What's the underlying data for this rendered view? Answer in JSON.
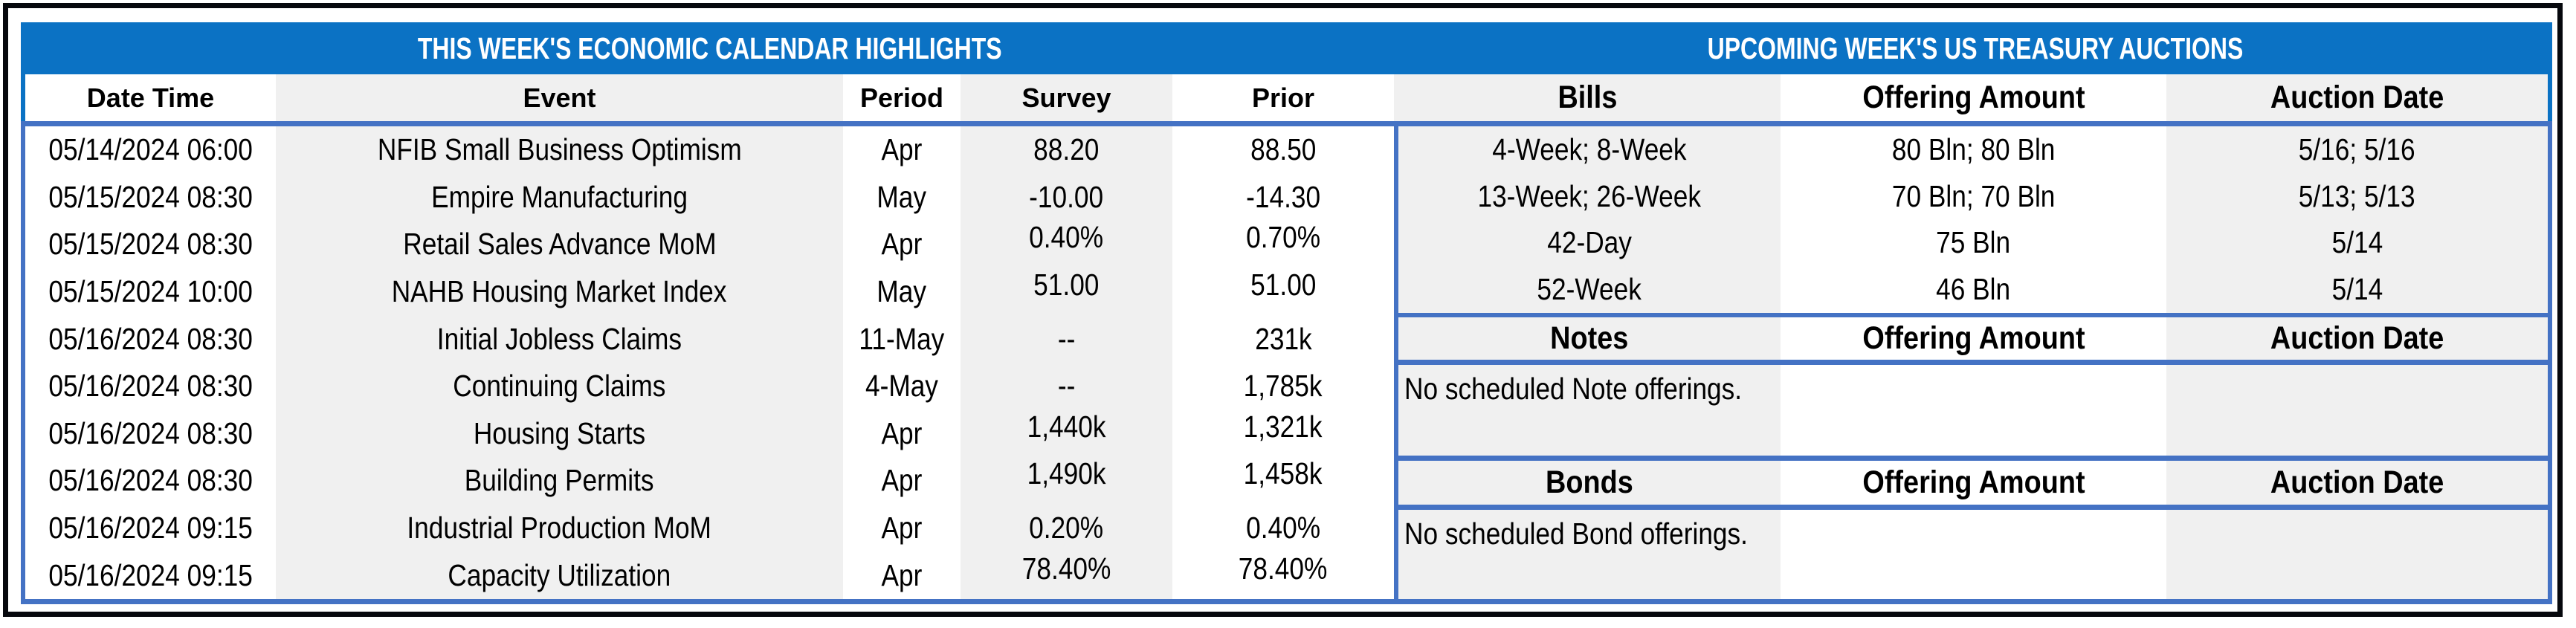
{
  "calendar": {
    "title": "THIS WEEK'S ECONOMIC CALENDAR HIGHLIGHTS",
    "columns": [
      "Date Time",
      "Event",
      "Period",
      "Survey",
      "Prior"
    ],
    "rows": [
      {
        "date_time": "05/14/2024 06:00",
        "event": "NFIB Small Business Optimism",
        "period": "Apr",
        "survey": "88.20",
        "prior": "88.50"
      },
      {
        "date_time": "05/15/2024 08:30",
        "event": "Empire Manufacturing",
        "period": "May",
        "survey": "-10.00",
        "prior": "-14.30"
      },
      {
        "date_time": "05/15/2024 08:30",
        "event": "Retail Sales Advance MoM",
        "period": "Apr",
        "survey": "0.40%",
        "prior": "0.70%"
      },
      {
        "date_time": "05/15/2024 10:00",
        "event": "NAHB Housing Market Index",
        "period": "May",
        "survey": "51.00",
        "prior": "51.00"
      },
      {
        "date_time": "05/16/2024 08:30",
        "event": "Initial Jobless Claims",
        "period": "11-May",
        "survey": "--",
        "prior": "231k"
      },
      {
        "date_time": "05/16/2024 08:30",
        "event": "Continuing Claims",
        "period": "4-May",
        "survey": "--",
        "prior": "1,785k"
      },
      {
        "date_time": "05/16/2024 08:30",
        "event": "Housing Starts",
        "period": "Apr",
        "survey": "1,440k",
        "prior": "1,321k"
      },
      {
        "date_time": "05/16/2024 08:30",
        "event": "Building Permits",
        "period": "Apr",
        "survey": "1,490k",
        "prior": "1,458k"
      },
      {
        "date_time": "05/16/2024 09:15",
        "event": "Industrial Production MoM",
        "period": "Apr",
        "survey": "0.20%",
        "prior": "0.40%"
      },
      {
        "date_time": "05/16/2024 09:15",
        "event": "Capacity Utilization",
        "period": "Apr",
        "survey": "78.40%",
        "prior": "78.40%"
      }
    ]
  },
  "auctions": {
    "title": "UPCOMING WEEK'S US TREASURY AUCTIONS",
    "bills": {
      "columns": [
        "Bills",
        "Offering Amount",
        "Auction Date"
      ],
      "rows": [
        {
          "security": "4-Week; 8-Week",
          "offering_amount": "80 Bln; 80 Bln",
          "auction_date": "5/16; 5/16"
        },
        {
          "security": "13-Week; 26-Week",
          "offering_amount": "70 Bln; 70 Bln",
          "auction_date": "5/13; 5/13"
        },
        {
          "security": "42-Day",
          "offering_amount": "75 Bln",
          "auction_date": "5/14"
        },
        {
          "security": "52-Week",
          "offering_amount": "46 Bln",
          "auction_date": "5/14"
        }
      ]
    },
    "notes": {
      "columns": [
        "Notes",
        "Offering Amount",
        "Auction Date"
      ],
      "message": "No scheduled Note offerings."
    },
    "bonds": {
      "columns": [
        "Bonds",
        "Offering Amount",
        "Auction Date"
      ],
      "message": "No scheduled Bond offerings."
    }
  },
  "colors": {
    "title_bar_blue": "#0b72c4",
    "grid_line_blue": "#4472c4",
    "column_stripe_gray": "#f0f0f0",
    "outer_frame_black": "#06080d",
    "title_text_white": "#ffffff",
    "body_text_black": "#000000"
  }
}
